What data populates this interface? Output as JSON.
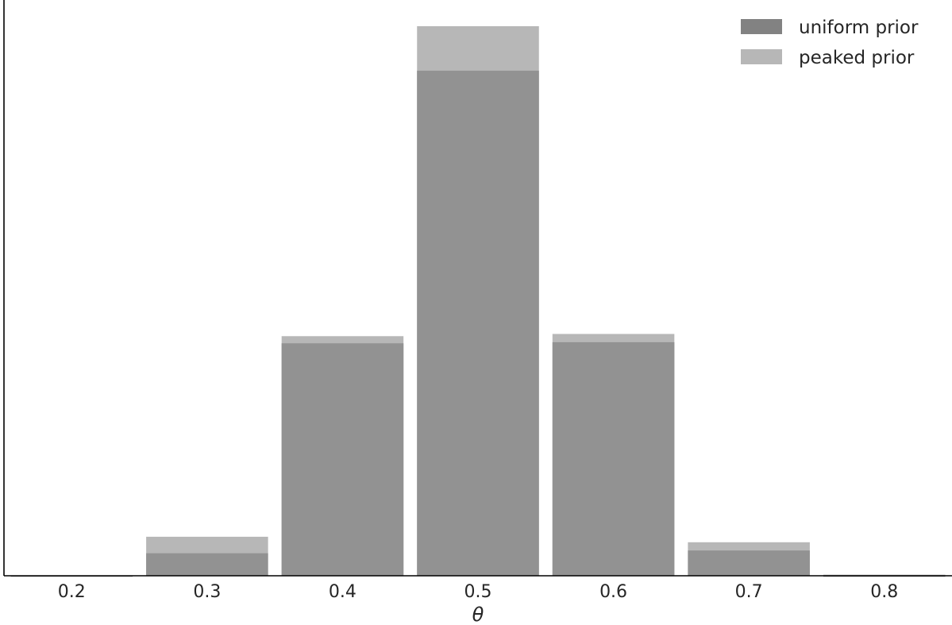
{
  "chart_data": {
    "type": "bar",
    "title": "",
    "xlabel": "θ",
    "ylabel": "",
    "x": [
      0.2,
      0.3,
      0.4,
      0.5,
      0.6,
      0.7,
      0.8
    ],
    "x_tick_labels": [
      "0.2",
      "0.3",
      "0.4",
      "0.5",
      "0.6",
      "0.7",
      "0.8"
    ],
    "xlim": [
      0.15,
      0.85
    ],
    "ylim": [
      0,
      1.0
    ],
    "bar_width": 0.09,
    "y_axis_ticks_shown": false,
    "grid": false,
    "legend_position": "top-right",
    "series": [
      {
        "name": "uniform prior",
        "color": "#4d4d4d",
        "opacity": 0.7,
        "values": [
          0.0,
          0.041,
          0.423,
          0.919,
          0.425,
          0.046,
          0.0
        ]
      },
      {
        "name": "peaked prior",
        "color": "#999999",
        "opacity": 0.7,
        "values": [
          0.0,
          0.071,
          0.436,
          1.0,
          0.44,
          0.061,
          0.002
        ]
      }
    ]
  }
}
